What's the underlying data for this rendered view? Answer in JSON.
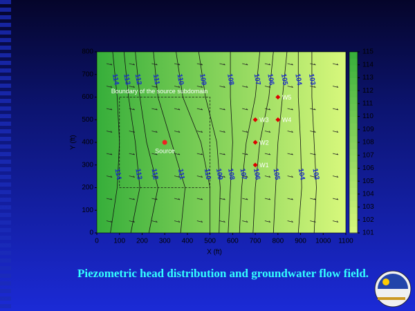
{
  "caption": "Piezometric head distribution and groundwater flow field.",
  "chart_data": {
    "type": "contour",
    "xlabel": "X (ft)",
    "ylabel": "Y (ft)",
    "xlim": [
      0,
      1100
    ],
    "ylim": [
      0,
      800
    ],
    "xticks": [
      0,
      100,
      200,
      300,
      400,
      500,
      600,
      700,
      800,
      900,
      1000,
      1100
    ],
    "yticks": [
      0,
      100,
      200,
      300,
      400,
      500,
      600,
      700,
      800
    ],
    "contour_y": [
      0,
      200,
      400,
      600,
      800
    ],
    "contours": [
      {
        "level": 114,
        "x": [
          60,
          90,
          100,
          90,
          70
        ]
      },
      {
        "level": 113,
        "x": [
          150,
          190,
          170,
          140,
          120
        ]
      },
      {
        "level": 112,
        "x": [
          230,
          270,
          220,
          190,
          170
        ]
      },
      {
        "level": 111,
        "x": [
          370,
          390,
          330,
          270,
          250
        ]
      },
      {
        "level": 110,
        "x": [
          500,
          500,
          460,
          380,
          350
        ]
      },
      {
        "level": 109,
        "x": [
          540,
          545,
          530,
          480,
          450
        ]
      },
      {
        "level": 108,
        "x": [
          580,
          590,
          600,
          590,
          590
        ]
      },
      {
        "level": 107,
        "x": [
          630,
          640,
          660,
          700,
          720
        ]
      },
      {
        "level": 106,
        "x": [
          690,
          700,
          720,
          760,
          780
        ]
      },
      {
        "level": 105,
        "x": [
          780,
          790,
          800,
          820,
          840
        ]
      },
      {
        "level": 104,
        "x": [
          890,
          905,
          900,
          890,
          890
        ]
      },
      {
        "level": 103,
        "x": [
          960,
          970,
          960,
          950,
          950
        ]
      }
    ],
    "colorbar": {
      "lim": [
        101,
        115
      ],
      "ticks": [
        101,
        102,
        103,
        104,
        105,
        106,
        107,
        108,
        109,
        110,
        111,
        112,
        113,
        114,
        115
      ],
      "colors": [
        "#d8f87c",
        "#36ae3a"
      ]
    },
    "subdomain": {
      "label": "Boundary of the source subdomain",
      "x": [
        100,
        500
      ],
      "y": [
        200,
        600
      ]
    },
    "source": {
      "label": "Source",
      "x": 300,
      "y": 400,
      "color": "#ee2222"
    },
    "wells": [
      {
        "name": "W1",
        "x": 700,
        "y": 300
      },
      {
        "name": "W2",
        "x": 700,
        "y": 400
      },
      {
        "name": "W3",
        "x": 700,
        "y": 500
      },
      {
        "name": "W4",
        "x": 800,
        "y": 500
      },
      {
        "name": "W5",
        "x": 800,
        "y": 600
      }
    ],
    "well_color": "#dd0000"
  }
}
